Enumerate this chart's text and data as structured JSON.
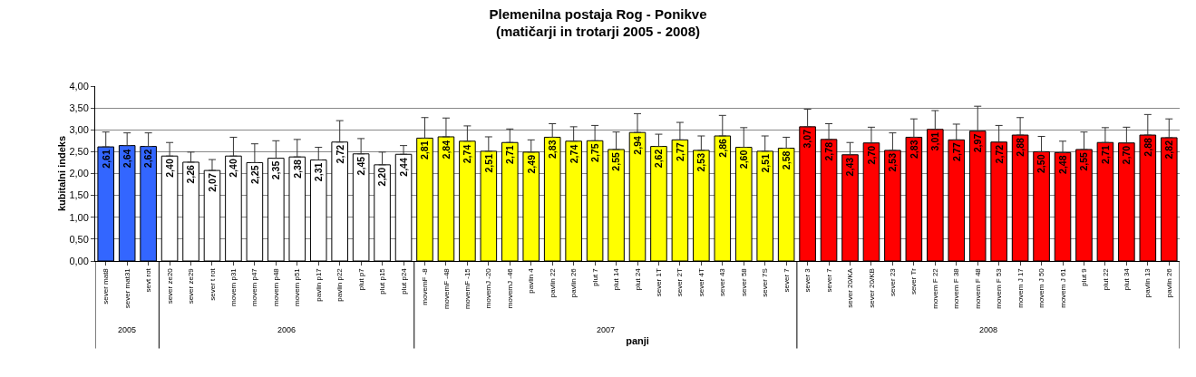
{
  "chart_data": {
    "type": "bar",
    "title": "Plemenilna postaja Rog - Ponikve\n(matičarji in trotarji 2005 - 2008)",
    "xlabel": "panji",
    "ylabel": "kubitalni indeks",
    "categories": [
      "sever mat8",
      "sever mat31",
      "sevt rot",
      "sever ze20",
      "sever ze29",
      "sever t rot",
      "movem p31",
      "movem p47",
      "movem p48",
      "movem p51",
      "pavlin p17",
      "pavlin p22",
      "plut p7",
      "plut p15",
      "plut p24",
      "movemF -8",
      "movemF -48",
      "movemF -15",
      "movemJ -20",
      "movemJ -46",
      "pavlin 4",
      "pavlin 22",
      "pavlin 26",
      "plut 7",
      "plut 14",
      "plut 24",
      "sever 1T",
      "sever 2T",
      "sever 4T",
      "sever 43",
      "sever 58",
      "sever 7S",
      "sever 7",
      "sever 3",
      "sever 7",
      "sever 20/KA",
      "sever 20/KB",
      "sever 23",
      "sever Tr",
      "movem F 22",
      "movem F 38",
      "movem F 48",
      "movem F 53",
      "movem J 17",
      "movem J 50",
      "movem J 61",
      "plut 9",
      "plut 22",
      "plut 34",
      "pavlin 13",
      "pavlin 26"
    ],
    "values": [
      2.61,
      2.64,
      2.62,
      2.4,
      2.26,
      2.07,
      2.4,
      2.25,
      2.35,
      2.38,
      2.31,
      2.72,
      2.45,
      2.2,
      2.44,
      2.81,
      2.84,
      2.74,
      2.51,
      2.71,
      2.49,
      2.83,
      2.74,
      2.75,
      2.55,
      2.94,
      2.62,
      2.77,
      2.53,
      2.86,
      2.6,
      2.51,
      2.58,
      3.07,
      2.78,
      2.43,
      2.7,
      2.53,
      2.83,
      3.01,
      2.77,
      2.97,
      2.72,
      2.88,
      2.5,
      2.48,
      2.55,
      2.71,
      2.7,
      2.88,
      2.82
    ],
    "value_labels": [
      "2,61",
      "2,64",
      "2,62",
      "2,40",
      "2,26",
      "2,07",
      "2,40",
      "2,25",
      "2,35",
      "2,38",
      "2,31",
      "2,72",
      "2,45",
      "2,20",
      "2,44",
      "2,81",
      "2,84",
      "2,74",
      "2,51",
      "2,71",
      "2,49",
      "2,83",
      "2,74",
      "2,75",
      "2,55",
      "2,94",
      "2,62",
      "2,77",
      "2,53",
      "2,86",
      "2,60",
      "2,51",
      "2,58",
      "3,07",
      "2,78",
      "2,43",
      "2,70",
      "2,53",
      "2,83",
      "3,01",
      "2,77",
      "2,97",
      "2,72",
      "2,88",
      "2,50",
      "2,48",
      "2,55",
      "2,71",
      "2,70",
      "2,88",
      "2,82"
    ],
    "errors": [
      [
        2.61,
        2.95
      ],
      [
        2.64,
        2.93
      ],
      [
        2.62,
        2.93
      ],
      [
        2.4,
        2.71
      ],
      [
        2.26,
        2.49
      ],
      [
        2.07,
        2.32
      ],
      [
        2.4,
        2.83
      ],
      [
        2.25,
        2.68
      ],
      [
        2.35,
        2.75
      ],
      [
        2.38,
        2.78
      ],
      [
        2.31,
        2.6
      ],
      [
        2.72,
        3.21
      ],
      [
        2.45,
        2.8
      ],
      [
        2.2,
        2.49
      ],
      [
        2.44,
        2.64
      ],
      [
        2.81,
        3.28
      ],
      [
        2.84,
        3.27
      ],
      [
        2.74,
        3.09
      ],
      [
        2.51,
        2.84
      ],
      [
        2.71,
        3.02
      ],
      [
        2.49,
        2.77
      ],
      [
        2.83,
        3.14
      ],
      [
        2.74,
        3.07
      ],
      [
        2.75,
        3.1
      ],
      [
        2.55,
        2.95
      ],
      [
        2.94,
        3.37
      ],
      [
        2.62,
        2.9
      ],
      [
        2.77,
        3.17
      ],
      [
        2.53,
        2.86
      ],
      [
        2.86,
        3.33
      ],
      [
        2.6,
        3.05
      ],
      [
        2.51,
        2.86
      ],
      [
        2.58,
        2.83
      ],
      [
        3.07,
        3.47
      ],
      [
        2.78,
        3.14
      ],
      [
        2.43,
        2.71
      ],
      [
        2.7,
        3.06
      ],
      [
        2.53,
        2.93
      ],
      [
        2.83,
        3.25
      ],
      [
        3.01,
        3.44
      ],
      [
        2.77,
        3.13
      ],
      [
        2.97,
        3.54
      ],
      [
        2.72,
        3.1
      ],
      [
        2.88,
        3.28
      ],
      [
        2.5,
        2.85
      ],
      [
        2.48,
        2.74
      ],
      [
        2.55,
        2.95
      ],
      [
        2.71,
        3.05
      ],
      [
        2.7,
        3.06
      ],
      [
        2.88,
        3.35
      ],
      [
        2.82,
        3.25
      ]
    ],
    "colors": [
      "#3366ff",
      "#3366ff",
      "#3366ff",
      "#ffffff",
      "#ffffff",
      "#ffffff",
      "#ffffff",
      "#ffffff",
      "#ffffff",
      "#ffffff",
      "#ffffff",
      "#ffffff",
      "#ffffff",
      "#ffffff",
      "#ffffff",
      "#ffff00",
      "#ffff00",
      "#ffff00",
      "#ffff00",
      "#ffff00",
      "#ffff00",
      "#ffff00",
      "#ffff00",
      "#ffff00",
      "#ffff00",
      "#ffff00",
      "#ffff00",
      "#ffff00",
      "#ffff00",
      "#ffff00",
      "#ffff00",
      "#ffff00",
      "#ffff00",
      "#ff0000",
      "#ff0000",
      "#ff0000",
      "#ff0000",
      "#ff0000",
      "#ff0000",
      "#ff0000",
      "#ff0000",
      "#ff0000",
      "#ff0000",
      "#ff0000",
      "#ff0000",
      "#ff0000",
      "#ff0000",
      "#ff0000",
      "#ff0000",
      "#ff0000",
      "#ff0000"
    ],
    "annotations": [
      "2005",
      "2006",
      "2007",
      "2008"
    ],
    "ylim": [
      0,
      4
    ],
    "yticks": [
      {
        "value": 0,
        "label": "0,00"
      },
      {
        "value": 0.5,
        "label": "0,50"
      },
      {
        "value": 1,
        "label": "1,00"
      },
      {
        "value": 1.5,
        "label": "1,50"
      },
      {
        "value": 2,
        "label": "2,00"
      },
      {
        "value": 2.5,
        "label": "2,50"
      },
      {
        "value": 3,
        "label": "3,00"
      },
      {
        "value": 3.5,
        "label": "3,50"
      },
      {
        "value": 4,
        "label": "4,00"
      }
    ],
    "grid": "y",
    "legend": false
  }
}
